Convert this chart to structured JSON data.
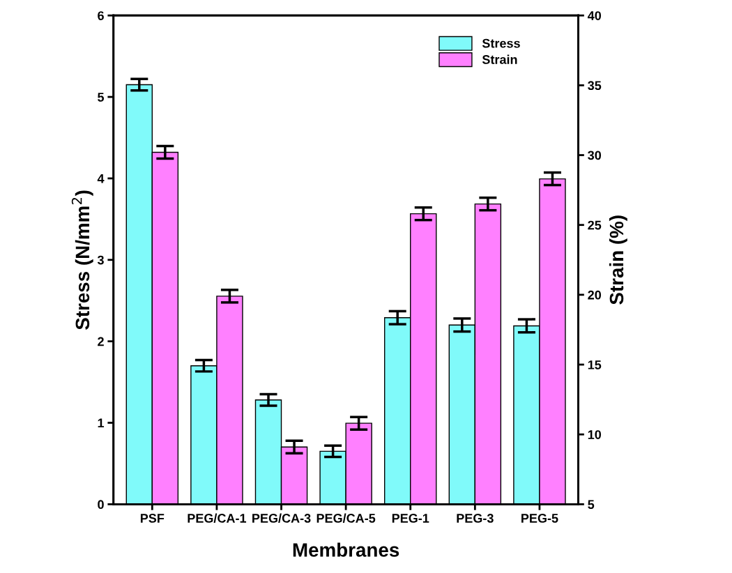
{
  "chart_data": {
    "type": "bar",
    "xlabel": "Membranes",
    "ylabel": "Stress (N/mm$^{2}$)",
    "y2label": "Strain (%)",
    "categories": [
      "PSF",
      "PEG/CA-1",
      "PEG/CA-3",
      "PEG/CA-5",
      "PEG-1",
      "PEG-3",
      "PEG-5"
    ],
    "series": [
      {
        "name": "Stress",
        "color": "#80fafa",
        "values": [
          5.15,
          1.7,
          1.28,
          0.65,
          2.29,
          2.2,
          2.19
        ],
        "errors": [
          0.07,
          0.07,
          0.07,
          0.07,
          0.08,
          0.08,
          0.08
        ]
      },
      {
        "name": "Strain",
        "color": "#ff80ff",
        "axis": "y2",
        "values": [
          30.2,
          19.9,
          9.1,
          10.8,
          25.8,
          26.5,
          28.3
        ],
        "errors": [
          0.45,
          0.45,
          0.45,
          0.45,
          0.45,
          0.45,
          0.45
        ]
      }
    ],
    "ylim": [
      0,
      6
    ],
    "yticks": [
      0,
      1,
      2,
      3,
      4,
      5,
      6
    ],
    "y2lim": [
      5,
      40
    ],
    "y2ticks": [
      5,
      10,
      15,
      20,
      25,
      30,
      35,
      40
    ],
    "legend": "top right",
    "grid": false
  }
}
